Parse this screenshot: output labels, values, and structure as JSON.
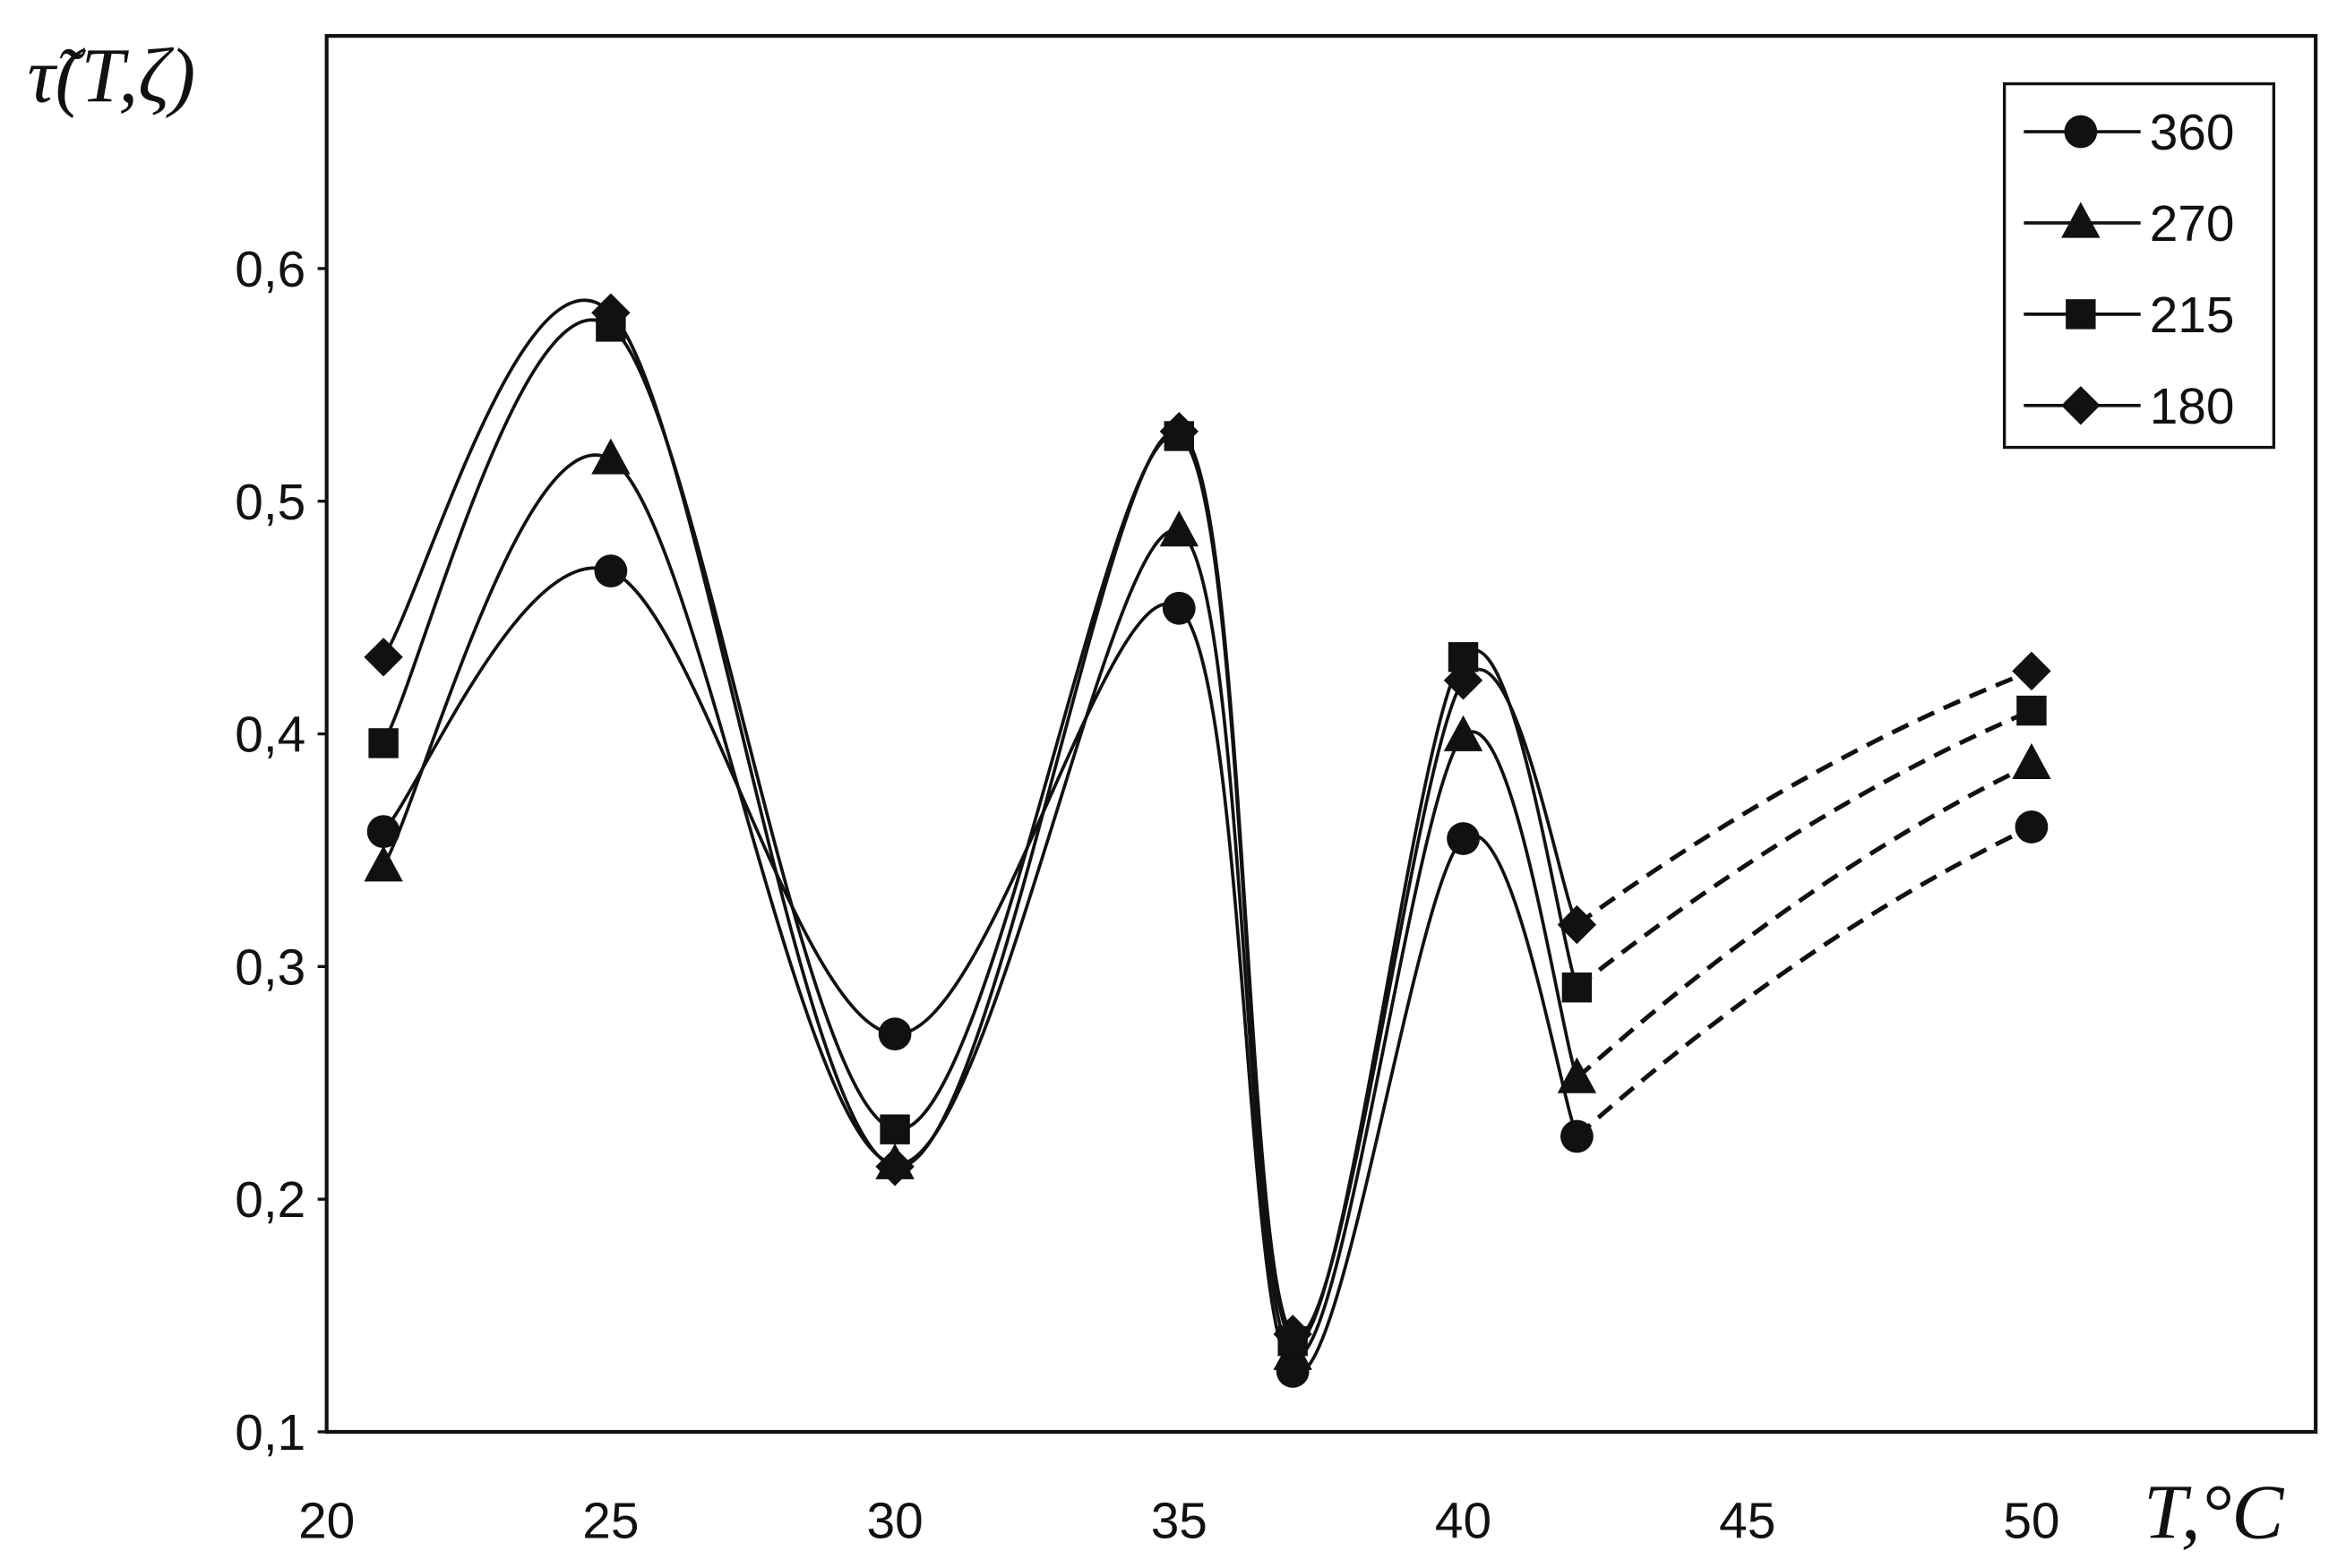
{
  "chart_data": {
    "type": "line",
    "title": "",
    "xlabel": "T,°C",
    "ylabel": "τ̃(T,ζ)",
    "xlim": [
      20,
      55
    ],
    "ylim": [
      0.1,
      0.7
    ],
    "x_ticks": [
      "20",
      "25",
      "30",
      "35",
      "40",
      "45",
      "50"
    ],
    "y_ticks": [
      "0,1",
      "0,2",
      "0,3",
      "0,4",
      "0,5",
      "0,6"
    ],
    "grid": false,
    "legend_position": "top-right",
    "x": [
      21,
      25,
      30,
      35,
      37,
      40,
      42,
      50
    ],
    "dashed_segment": [
      42,
      50
    ],
    "series": [
      {
        "name": "360",
        "marker": "circle",
        "values": [
          0.358,
          0.47,
          0.271,
          0.454,
          0.126,
          0.355,
          0.227,
          0.36
        ]
      },
      {
        "name": "270",
        "marker": "triangle",
        "values": [
          0.343,
          0.518,
          0.215,
          0.487,
          0.133,
          0.399,
          0.252,
          0.387
        ]
      },
      {
        "name": "215",
        "marker": "square",
        "values": [
          0.396,
          0.575,
          0.23,
          0.528,
          0.139,
          0.433,
          0.291,
          0.41
        ]
      },
      {
        "name": "180",
        "marker": "diamond",
        "values": [
          0.433,
          0.581,
          0.214,
          0.53,
          0.142,
          0.423,
          0.318,
          0.427
        ]
      }
    ],
    "colors": {
      "line": "#111111",
      "frame": "#111111"
    }
  }
}
